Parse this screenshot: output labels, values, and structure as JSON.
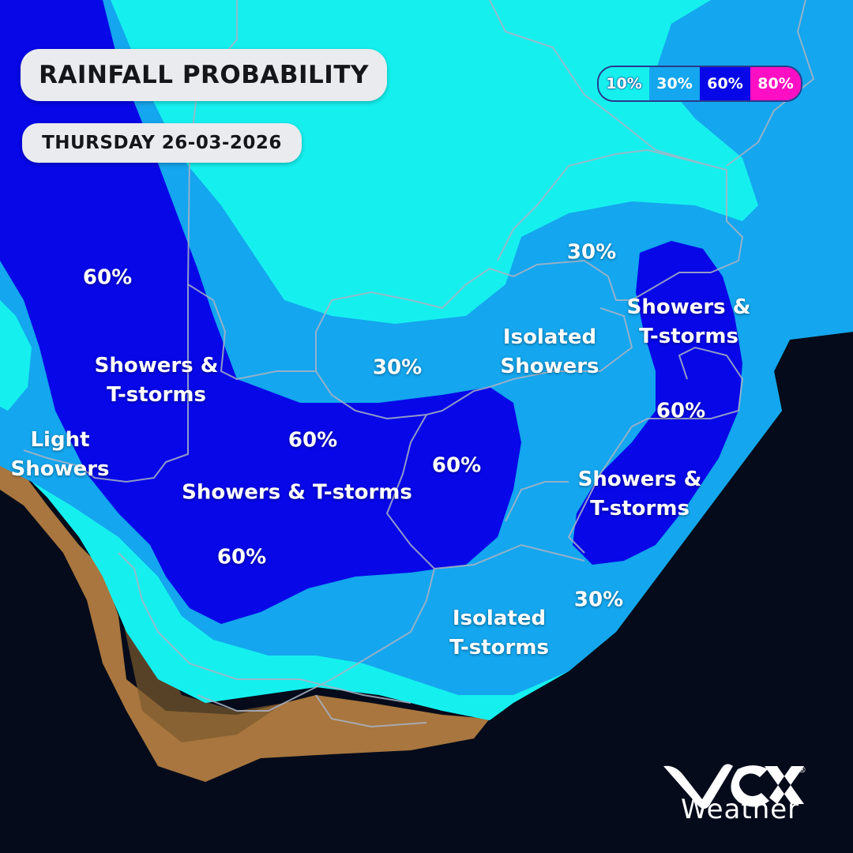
{
  "header": {
    "title": "RAINFALL PROBABILITY",
    "date": "THURSDAY 26-03-2026"
  },
  "legend": [
    {
      "label": "10%",
      "color": "#15f0ef",
      "text_color": "#ffffff"
    },
    {
      "label": "30%",
      "color": "#14a6ee",
      "text_color": "#ffffff"
    },
    {
      "label": "60%",
      "color": "#0707e8",
      "text_color": "#ffffff"
    },
    {
      "label": "80%",
      "color": "#ff0fc4",
      "text_color": "#ffffff"
    }
  ],
  "colors": {
    "ocean": "#050b1a",
    "land": "#a8763e",
    "p10": "#15f0ef",
    "p30": "#14a6ee",
    "p60": "#0707e8",
    "border": "#a9b3c4"
  },
  "map_labels": {
    "nw_60": "60%",
    "west_showers": "Showers &\nT-storms",
    "light_showers": "Light\nShowers",
    "central_60": "60%",
    "central_showers": "Showers &  T-storms",
    "sw_60": "60%",
    "central_30": "30%",
    "fs_60": "60%",
    "north_30": "30%",
    "isolated_showers": "Isolated\nShowers",
    "ne_showers": "Showers &\nT-storms",
    "east_60": "60%",
    "east_showers": "Showers &\nT-storms",
    "se_30": "30%",
    "isolated_tstorms": "Isolated\nT-storms"
  },
  "logo": {
    "brand": "VOX",
    "word": "Weather",
    "registered": "®"
  }
}
